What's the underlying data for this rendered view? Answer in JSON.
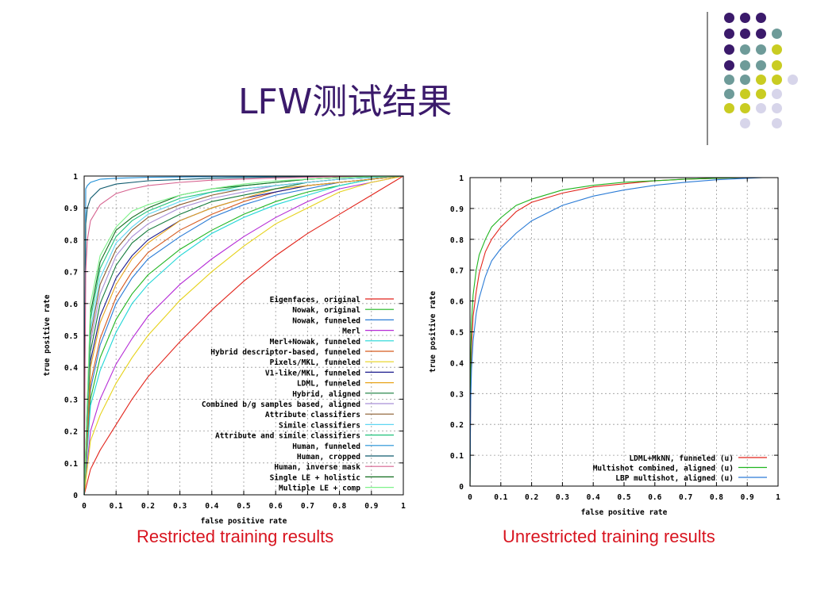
{
  "slide_title": "LFW测试结果",
  "captions": {
    "restricted": "Restricted training results",
    "unrestricted": "Unrestricted training results"
  },
  "decor": {
    "dot_colors": [
      "#3b1a6b",
      "#6e9b99",
      "#c9cc22",
      "#d7d5ea"
    ],
    "line_color": "#8a8a8a"
  },
  "chart_data": [
    {
      "type": "line",
      "title": "",
      "xlabel": "false positive rate",
      "ylabel": "true positive rate",
      "xlim": [
        0,
        1
      ],
      "ylim": [
        0,
        1
      ],
      "grid": true,
      "legend_position": "bottom-right",
      "xticks": [
        "0",
        "0.1",
        "0.2",
        "0.3",
        "0.4",
        "0.5",
        "0.6",
        "0.7",
        "0.8",
        "0.9",
        "1"
      ],
      "yticks": [
        "0",
        "0.1",
        "0.2",
        "0.3",
        "0.4",
        "0.5",
        "0.6",
        "0.7",
        "0.8",
        "0.9",
        "1"
      ],
      "series": [
        {
          "name": "Eigenfaces, original",
          "color": "#e2231a",
          "x": [
            0,
            0.02,
            0.05,
            0.1,
            0.15,
            0.2,
            0.3,
            0.4,
            0.5,
            0.6,
            0.7,
            0.8,
            0.9,
            1
          ],
          "y": [
            0,
            0.08,
            0.14,
            0.22,
            0.3,
            0.37,
            0.48,
            0.58,
            0.67,
            0.75,
            0.82,
            0.88,
            0.94,
            1
          ]
        },
        {
          "name": "Nowak, original",
          "color": "#1fb51f",
          "x": [
            0,
            0.02,
            0.05,
            0.1,
            0.15,
            0.2,
            0.3,
            0.4,
            0.5,
            0.6,
            0.7,
            0.8,
            0.9,
            1
          ],
          "y": [
            0,
            0.3,
            0.43,
            0.55,
            0.63,
            0.69,
            0.77,
            0.83,
            0.88,
            0.92,
            0.95,
            0.97,
            0.99,
            1
          ]
        },
        {
          "name": "Nowak, funneled",
          "color": "#2a7bd6",
          "x": [
            0,
            0.02,
            0.05,
            0.1,
            0.15,
            0.2,
            0.3,
            0.4,
            0.5,
            0.6,
            0.7,
            0.8,
            0.9,
            1
          ],
          "y": [
            0,
            0.33,
            0.47,
            0.6,
            0.68,
            0.74,
            0.81,
            0.87,
            0.91,
            0.94,
            0.96,
            0.98,
            0.99,
            1
          ]
        },
        {
          "name": "Merl",
          "color": "#b52ad6",
          "x": [
            0,
            0.02,
            0.05,
            0.1,
            0.15,
            0.2,
            0.3,
            0.4,
            0.5,
            0.6,
            0.7,
            0.8,
            0.9,
            1
          ],
          "y": [
            0,
            0.2,
            0.3,
            0.41,
            0.49,
            0.56,
            0.66,
            0.74,
            0.81,
            0.87,
            0.92,
            0.96,
            0.98,
            1
          ]
        },
        {
          "name": "Merl+Nowak, funneled",
          "color": "#1fd6d6",
          "x": [
            0,
            0.02,
            0.05,
            0.1,
            0.15,
            0.2,
            0.3,
            0.4,
            0.5,
            0.6,
            0.7,
            0.8,
            0.9,
            1
          ],
          "y": [
            0,
            0.28,
            0.39,
            0.51,
            0.6,
            0.66,
            0.75,
            0.82,
            0.87,
            0.91,
            0.94,
            0.97,
            0.99,
            1
          ]
        },
        {
          "name": "Hybrid descriptor-based, funneled",
          "color": "#d65a1f",
          "x": [
            0,
            0.02,
            0.05,
            0.1,
            0.15,
            0.2,
            0.3,
            0.4,
            0.5,
            0.6,
            0.7,
            0.8,
            0.9,
            1
          ],
          "y": [
            0,
            0.35,
            0.49,
            0.62,
            0.7,
            0.76,
            0.83,
            0.88,
            0.92,
            0.95,
            0.97,
            0.98,
            0.99,
            1
          ]
        },
        {
          "name": "Pixels/MKL, funneled",
          "color": "#e6d21a",
          "x": [
            0,
            0.02,
            0.05,
            0.1,
            0.15,
            0.2,
            0.3,
            0.4,
            0.5,
            0.6,
            0.7,
            0.8,
            0.9,
            1
          ],
          "y": [
            0,
            0.17,
            0.25,
            0.35,
            0.43,
            0.5,
            0.61,
            0.7,
            0.78,
            0.85,
            0.9,
            0.95,
            0.98,
            1
          ]
        },
        {
          "name": "V1-like/MKL, funneled",
          "color": "#1a1a8c",
          "x": [
            0,
            0.02,
            0.05,
            0.1,
            0.15,
            0.2,
            0.3,
            0.4,
            0.5,
            0.6,
            0.7,
            0.8,
            0.9,
            1
          ],
          "y": [
            0,
            0.42,
            0.56,
            0.68,
            0.75,
            0.8,
            0.86,
            0.9,
            0.93,
            0.95,
            0.97,
            0.98,
            0.99,
            1
          ]
        },
        {
          "name": "LDML, funneled",
          "color": "#e8a41a",
          "x": [
            0,
            0.02,
            0.05,
            0.1,
            0.15,
            0.2,
            0.3,
            0.4,
            0.5,
            0.6,
            0.7,
            0.8,
            0.9,
            1
          ],
          "y": [
            0,
            0.4,
            0.54,
            0.66,
            0.74,
            0.79,
            0.86,
            0.9,
            0.93,
            0.96,
            0.97,
            0.98,
            0.99,
            1
          ]
        },
        {
          "name": "Hybrid, aligned",
          "color": "#137a3a",
          "x": [
            0,
            0.02,
            0.05,
            0.1,
            0.15,
            0.2,
            0.3,
            0.4,
            0.5,
            0.6,
            0.7,
            0.8,
            0.9,
            1
          ],
          "y": [
            0,
            0.45,
            0.6,
            0.72,
            0.79,
            0.83,
            0.88,
            0.92,
            0.94,
            0.96,
            0.98,
            0.99,
            0.995,
            1
          ]
        },
        {
          "name": "Combined b/g samples based, aligned",
          "color": "#a98fd6",
          "x": [
            0,
            0.02,
            0.05,
            0.1,
            0.15,
            0.2,
            0.3,
            0.4,
            0.5,
            0.6,
            0.7,
            0.8,
            0.9,
            1
          ],
          "y": [
            0,
            0.48,
            0.63,
            0.75,
            0.81,
            0.85,
            0.9,
            0.93,
            0.95,
            0.97,
            0.98,
            0.99,
            0.995,
            1
          ]
        },
        {
          "name": "Attribute classifiers",
          "color": "#8a5a2b",
          "x": [
            0,
            0.02,
            0.05,
            0.1,
            0.15,
            0.2,
            0.3,
            0.4,
            0.5,
            0.6,
            0.7,
            0.8,
            0.9,
            1
          ],
          "y": [
            0,
            0.5,
            0.66,
            0.77,
            0.83,
            0.87,
            0.91,
            0.94,
            0.96,
            0.97,
            0.98,
            0.99,
            0.995,
            1
          ]
        },
        {
          "name": "Simile classifiers",
          "color": "#5fd6f2",
          "x": [
            0,
            0.02,
            0.05,
            0.1,
            0.15,
            0.2,
            0.3,
            0.4,
            0.5,
            0.6,
            0.7,
            0.8,
            0.9,
            1
          ],
          "y": [
            0,
            0.52,
            0.68,
            0.79,
            0.84,
            0.88,
            0.92,
            0.95,
            0.96,
            0.97,
            0.98,
            0.99,
            0.995,
            1
          ]
        },
        {
          "name": "Attribute and simile classifiers",
          "color": "#1fc27a",
          "x": [
            0,
            0.02,
            0.05,
            0.1,
            0.15,
            0.2,
            0.3,
            0.4,
            0.5,
            0.6,
            0.7,
            0.8,
            0.9,
            1
          ],
          "y": [
            0,
            0.55,
            0.71,
            0.81,
            0.86,
            0.89,
            0.93,
            0.95,
            0.97,
            0.98,
            0.99,
            0.995,
            0.998,
            1
          ]
        },
        {
          "name": "Human, funneled",
          "color": "#1f8fd6",
          "x": [
            0,
            0.005,
            0.01,
            0.02,
            0.05,
            0.1,
            0.2,
            0.4,
            0.6,
            0.8,
            1
          ],
          "y": [
            0,
            0.96,
            0.97,
            0.98,
            0.99,
            0.993,
            0.996,
            0.998,
            0.999,
            1,
            1
          ]
        },
        {
          "name": "Human, cropped",
          "color": "#0f5a6e",
          "x": [
            0,
            0.005,
            0.01,
            0.02,
            0.05,
            0.1,
            0.2,
            0.4,
            0.6,
            0.8,
            1
          ],
          "y": [
            0,
            0.85,
            0.9,
            0.93,
            0.96,
            0.975,
            0.985,
            0.993,
            0.997,
            0.999,
            1
          ]
        },
        {
          "name": "Human, inverse mask",
          "color": "#d6628f",
          "x": [
            0,
            0.005,
            0.01,
            0.02,
            0.05,
            0.1,
            0.15,
            0.2,
            0.3,
            0.4,
            0.6,
            0.8,
            1
          ],
          "y": [
            0,
            0.7,
            0.8,
            0.86,
            0.91,
            0.945,
            0.96,
            0.97,
            0.98,
            0.987,
            0.994,
            0.998,
            1
          ]
        },
        {
          "name": "Single LE + holistic",
          "color": "#0d6b1a",
          "x": [
            0,
            0.02,
            0.05,
            0.1,
            0.15,
            0.2,
            0.3,
            0.4,
            0.5,
            0.6,
            0.7,
            0.8,
            0.9,
            1
          ],
          "y": [
            0,
            0.57,
            0.73,
            0.83,
            0.87,
            0.9,
            0.94,
            0.96,
            0.97,
            0.98,
            0.99,
            0.995,
            0.998,
            1
          ]
        },
        {
          "name": "Multiple LE + comp",
          "color": "#7ef28a",
          "x": [
            0,
            0.02,
            0.05,
            0.1,
            0.15,
            0.2,
            0.3,
            0.4,
            0.5,
            0.6,
            0.7,
            0.8,
            0.9,
            1
          ],
          "y": [
            0,
            0.6,
            0.75,
            0.84,
            0.89,
            0.91,
            0.94,
            0.96,
            0.975,
            0.985,
            0.99,
            0.995,
            0.998,
            1
          ]
        }
      ]
    },
    {
      "type": "line",
      "title": "",
      "xlabel": "false positive rate",
      "ylabel": "true positive rate",
      "xlim": [
        0,
        1
      ],
      "ylim": [
        0,
        1
      ],
      "grid": true,
      "legend_position": "bottom-right",
      "xticks": [
        "0",
        "0.1",
        "0.2",
        "0.3",
        "0.4",
        "0.5",
        "0.6",
        "0.7",
        "0.8",
        "0.9",
        "1"
      ],
      "yticks": [
        "0",
        "0.1",
        "0.2",
        "0.3",
        "0.4",
        "0.5",
        "0.6",
        "0.7",
        "0.8",
        "0.9",
        "1"
      ],
      "series": [
        {
          "name": "LDML+MkNN, funneled (u)",
          "color": "#e2231a",
          "x": [
            0,
            0.002,
            0.005,
            0.01,
            0.02,
            0.03,
            0.05,
            0.07,
            0.1,
            0.15,
            0.2,
            0.3,
            0.4,
            0.5,
            0.6,
            0.7,
            0.8,
            0.9,
            0.95
          ],
          "y": [
            0,
            0.3,
            0.45,
            0.55,
            0.63,
            0.69,
            0.76,
            0.8,
            0.84,
            0.89,
            0.92,
            0.95,
            0.97,
            0.98,
            0.99,
            0.995,
            0.998,
            1,
            1
          ]
        },
        {
          "name": "Multishot combined, aligned (u)",
          "color": "#1fb51f",
          "x": [
            0,
            0.002,
            0.005,
            0.01,
            0.02,
            0.03,
            0.05,
            0.07,
            0.1,
            0.15,
            0.2,
            0.3,
            0.4,
            0.5,
            0.6,
            0.7,
            0.8,
            0.9,
            0.95
          ],
          "y": [
            0,
            0.4,
            0.53,
            0.62,
            0.7,
            0.75,
            0.8,
            0.84,
            0.87,
            0.91,
            0.93,
            0.96,
            0.975,
            0.985,
            0.99,
            0.995,
            0.998,
            1,
            1
          ]
        },
        {
          "name": "LBP multishot, aligned (u)",
          "color": "#2a7bd6",
          "x": [
            0,
            0.002,
            0.005,
            0.01,
            0.02,
            0.03,
            0.05,
            0.07,
            0.1,
            0.15,
            0.2,
            0.3,
            0.4,
            0.5,
            0.6,
            0.7,
            0.8,
            0.9,
            0.95
          ],
          "y": [
            0,
            0.27,
            0.38,
            0.47,
            0.56,
            0.61,
            0.68,
            0.73,
            0.77,
            0.82,
            0.86,
            0.91,
            0.94,
            0.96,
            0.975,
            0.985,
            0.993,
            0.998,
            1
          ]
        }
      ]
    }
  ]
}
